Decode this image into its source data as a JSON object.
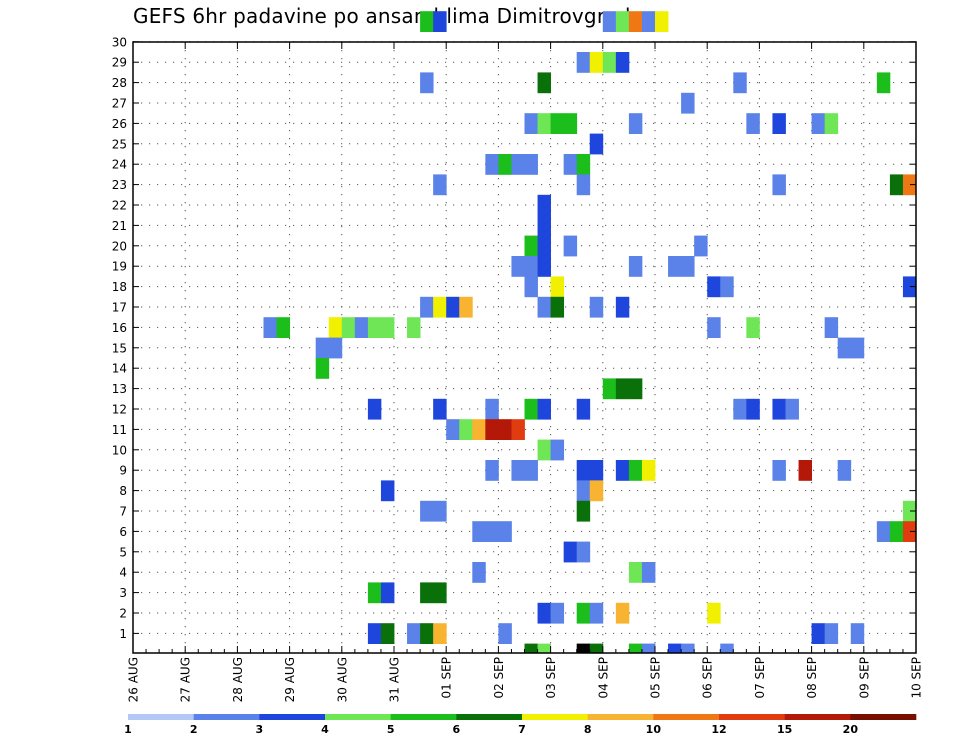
{
  "chart_data": {
    "type": "heatmap",
    "title": "GEFS 6hr padavine po ansamblima Dimitrovgrad",
    "xlabel": "",
    "ylabel": "",
    "x_tick_labels": [
      "26 AUG",
      "27 AUG",
      "28 AUG",
      "29 AUG",
      "30 AUG",
      "31 AUG",
      "01 SEP",
      "02 SEP",
      "03 SEP",
      "04 SEP",
      "05 SEP",
      "06 SEP",
      "07 SEP",
      "08 SEP",
      "09 SEP",
      "10 SEP"
    ],
    "y_tick_labels": [
      "1",
      "2",
      "3",
      "4",
      "5",
      "6",
      "7",
      "8",
      "9",
      "10",
      "11",
      "12",
      "13",
      "14",
      "15",
      "16",
      "17",
      "18",
      "19",
      "20",
      "21",
      "22",
      "23",
      "24",
      "25",
      "26",
      "27",
      "28",
      "29",
      "30"
    ],
    "x_range_steps": [
      0,
      60
    ],
    "steps_per_day": 4,
    "members": [
      1,
      30
    ],
    "grid": "dotted",
    "colorbar": {
      "position": "bottom",
      "levels": [
        "1",
        "2",
        "3",
        "4",
        "5",
        "6",
        "7",
        "8",
        "10",
        "12",
        "15",
        "20"
      ],
      "colors": [
        "#b4c8f8",
        "#5a82e8",
        "#1e46dc",
        "#6ee655",
        "#1cbe1c",
        "#0a700a",
        "#f0f000",
        "#f8b430",
        "#f07814",
        "#e03c10",
        "#b41808",
        "#781000"
      ]
    },
    "cells": [
      [
        30,
        22,
        4
      ],
      [
        30,
        23,
        2
      ],
      [
        30,
        36,
        1
      ],
      [
        30,
        37,
        3
      ],
      [
        30,
        38,
        8
      ],
      [
        30,
        39,
        1
      ],
      [
        30,
        40,
        6
      ],
      [
        28,
        34,
        1
      ],
      [
        28,
        35,
        6
      ],
      [
        28,
        36,
        3
      ],
      [
        28,
        37,
        2
      ],
      [
        27,
        22,
        1
      ],
      [
        27,
        31,
        5
      ],
      [
        27,
        46,
        1
      ],
      [
        27,
        57,
        4
      ],
      [
        26,
        42,
        1
      ],
      [
        25,
        30,
        1
      ],
      [
        25,
        31,
        3
      ],
      [
        25,
        32,
        4
      ],
      [
        25,
        33,
        4
      ],
      [
        25,
        38,
        1
      ],
      [
        25,
        47,
        1
      ],
      [
        25,
        49,
        2
      ],
      [
        25,
        52,
        1
      ],
      [
        25,
        53,
        3
      ],
      [
        24,
        35,
        2
      ],
      [
        23,
        27,
        1
      ],
      [
        23,
        28,
        4
      ],
      [
        23,
        29,
        1
      ],
      [
        23,
        30,
        1
      ],
      [
        23,
        33,
        1
      ],
      [
        23,
        34,
        4
      ],
      [
        22,
        23,
        1
      ],
      [
        22,
        34,
        1
      ],
      [
        22,
        49,
        1
      ],
      [
        22,
        58,
        5
      ],
      [
        22,
        59,
        8
      ],
      [
        21,
        31,
        2
      ],
      [
        20,
        31,
        2
      ],
      [
        19,
        30,
        4
      ],
      [
        19,
        31,
        2
      ],
      [
        19,
        33,
        1
      ],
      [
        19,
        43,
        1
      ],
      [
        18,
        29,
        1
      ],
      [
        18,
        30,
        1
      ],
      [
        18,
        31,
        2
      ],
      [
        18,
        38,
        1
      ],
      [
        18,
        41,
        1
      ],
      [
        18,
        42,
        1
      ],
      [
        17,
        30,
        1
      ],
      [
        17,
        32,
        6
      ],
      [
        17,
        44,
        2
      ],
      [
        17,
        45,
        1
      ],
      [
        17,
        59,
        2
      ],
      [
        16,
        22,
        1
      ],
      [
        16,
        23,
        6
      ],
      [
        16,
        24,
        2
      ],
      [
        16,
        25,
        7
      ],
      [
        16,
        31,
        1
      ],
      [
        16,
        32,
        5
      ],
      [
        16,
        35,
        1
      ],
      [
        16,
        37,
        2
      ],
      [
        15,
        10,
        1
      ],
      [
        15,
        11,
        4
      ],
      [
        15,
        15,
        6
      ],
      [
        15,
        16,
        3
      ],
      [
        15,
        17,
        1
      ],
      [
        15,
        18,
        3
      ],
      [
        15,
        19,
        3
      ],
      [
        15,
        21,
        3
      ],
      [
        15,
        44,
        1
      ],
      [
        15,
        47,
        3
      ],
      [
        15,
        53,
        1
      ],
      [
        14,
        14,
        1
      ],
      [
        14,
        15,
        1
      ],
      [
        14,
        54,
        1
      ],
      [
        14,
        55,
        1
      ],
      [
        13,
        14,
        4
      ],
      [
        12,
        36,
        4
      ],
      [
        12,
        37,
        5
      ],
      [
        12,
        38,
        5
      ],
      [
        11,
        18,
        2
      ],
      [
        11,
        23,
        2
      ],
      [
        11,
        27,
        1
      ],
      [
        11,
        30,
        4
      ],
      [
        11,
        31,
        2
      ],
      [
        11,
        34,
        2
      ],
      [
        11,
        46,
        1
      ],
      [
        11,
        47,
        2
      ],
      [
        11,
        49,
        2
      ],
      [
        11,
        50,
        1
      ],
      [
        10,
        24,
        1
      ],
      [
        10,
        25,
        3
      ],
      [
        10,
        26,
        7
      ],
      [
        10,
        27,
        10
      ],
      [
        10,
        28,
        10
      ],
      [
        10,
        29,
        9
      ],
      [
        9,
        31,
        3
      ],
      [
        9,
        32,
        1
      ],
      [
        8,
        27,
        1
      ],
      [
        8,
        29,
        1
      ],
      [
        8,
        30,
        1
      ],
      [
        8,
        34,
        2
      ],
      [
        8,
        35,
        2
      ],
      [
        8,
        37,
        2
      ],
      [
        8,
        38,
        4
      ],
      [
        8,
        39,
        6
      ],
      [
        8,
        49,
        1
      ],
      [
        8,
        51,
        10
      ],
      [
        8,
        54,
        1
      ],
      [
        7,
        19,
        2
      ],
      [
        7,
        34,
        1
      ],
      [
        7,
        35,
        7
      ],
      [
        6,
        22,
        1
      ],
      [
        6,
        23,
        1
      ],
      [
        6,
        34,
        5
      ],
      [
        6,
        59,
        3
      ],
      [
        5,
        26,
        1
      ],
      [
        5,
        27,
        1
      ],
      [
        5,
        28,
        1
      ],
      [
        5,
        57,
        1
      ],
      [
        5,
        58,
        4
      ],
      [
        5,
        59,
        9
      ],
      [
        4,
        33,
        2
      ],
      [
        4,
        34,
        1
      ],
      [
        3,
        26,
        1
      ],
      [
        3,
        38,
        3
      ],
      [
        3,
        39,
        1
      ],
      [
        2,
        18,
        4
      ],
      [
        2,
        19,
        2
      ],
      [
        2,
        22,
        5
      ],
      [
        2,
        23,
        5
      ],
      [
        1,
        31,
        2
      ],
      [
        1,
        32,
        1
      ],
      [
        1,
        34,
        4
      ],
      [
        1,
        35,
        1
      ],
      [
        1,
        37,
        7
      ],
      [
        1,
        44,
        6
      ],
      [
        0,
        18,
        2
      ],
      [
        0,
        19,
        5
      ],
      [
        0,
        21,
        1
      ],
      [
        0,
        22,
        5
      ],
      [
        0,
        23,
        7
      ],
      [
        0,
        28,
        1
      ],
      [
        0,
        52,
        2
      ],
      [
        0,
        53,
        1
      ],
      [
        0,
        55,
        1
      ]
    ],
    "bottom_strip_cells": [
      [
        30,
        5
      ],
      [
        31,
        3
      ],
      [
        34,
        12
      ],
      [
        35,
        5
      ],
      [
        38,
        4
      ],
      [
        39,
        1
      ],
      [
        41,
        2
      ],
      [
        42,
        1
      ],
      [
        45,
        1
      ]
    ]
  }
}
